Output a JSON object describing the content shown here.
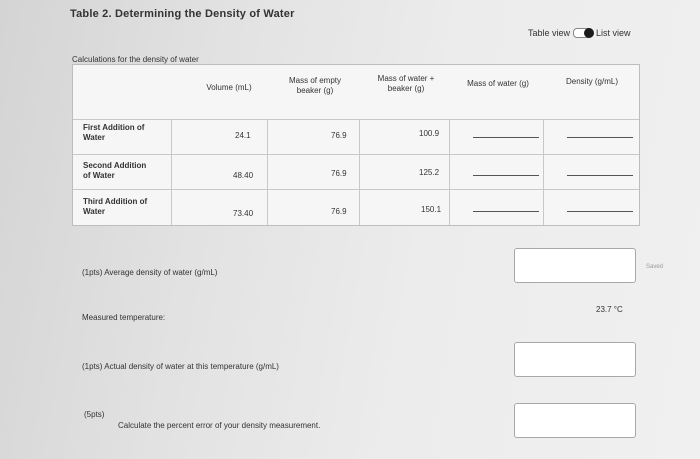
{
  "page": {
    "title": "Table 2. Determining the Density of Water",
    "view_toggle": {
      "left_label": "Table view",
      "right_label": "List view"
    },
    "subtitle": "Calculations for the density of water"
  },
  "table": {
    "columns": [
      "Volume (mL)",
      "Mass of empty beaker (g)",
      "Mass of water + beaker (g)",
      "Mass of water (g)",
      "Density (g/mL)"
    ],
    "column_lines": [
      [
        "Volume (mL)"
      ],
      [
        "Mass of empty",
        "beaker (g)"
      ],
      [
        "Mass of water +",
        "beaker (g)"
      ],
      [
        "Mass of water (g)"
      ],
      [
        "Density (g/mL)"
      ]
    ],
    "rows": [
      {
        "label_lines": [
          "First Addition of",
          "Water"
        ],
        "volume": "24.1",
        "mass_empty": "76.9",
        "mass_water_beaker": "100.9",
        "mass_water": "",
        "density": ""
      },
      {
        "label_lines": [
          "Second Addition",
          "of Water"
        ],
        "volume": "48.40",
        "mass_empty": "76.9",
        "mass_water_beaker": "125.2",
        "mass_water": "",
        "density": ""
      },
      {
        "label_lines": [
          "Third Addition of",
          "Water"
        ],
        "volume": "73.40",
        "mass_empty": "76.9",
        "mass_water_beaker": "150.1",
        "mass_water": "",
        "density": ""
      }
    ]
  },
  "questions": {
    "average_density": {
      "label": "(1pts)  Average density of water (g/mL)",
      "value": "",
      "status": "Saved"
    },
    "measured_temperature": {
      "label": "Measured temperature:",
      "value": "23.7 °C"
    },
    "actual_density": {
      "label": "(1pts)  Actual density of water at this temperature (g/mL)",
      "value": ""
    },
    "percent_error": {
      "points": "(5pts)",
      "label": "Calculate the percent error of your density measurement.",
      "value": ""
    }
  }
}
